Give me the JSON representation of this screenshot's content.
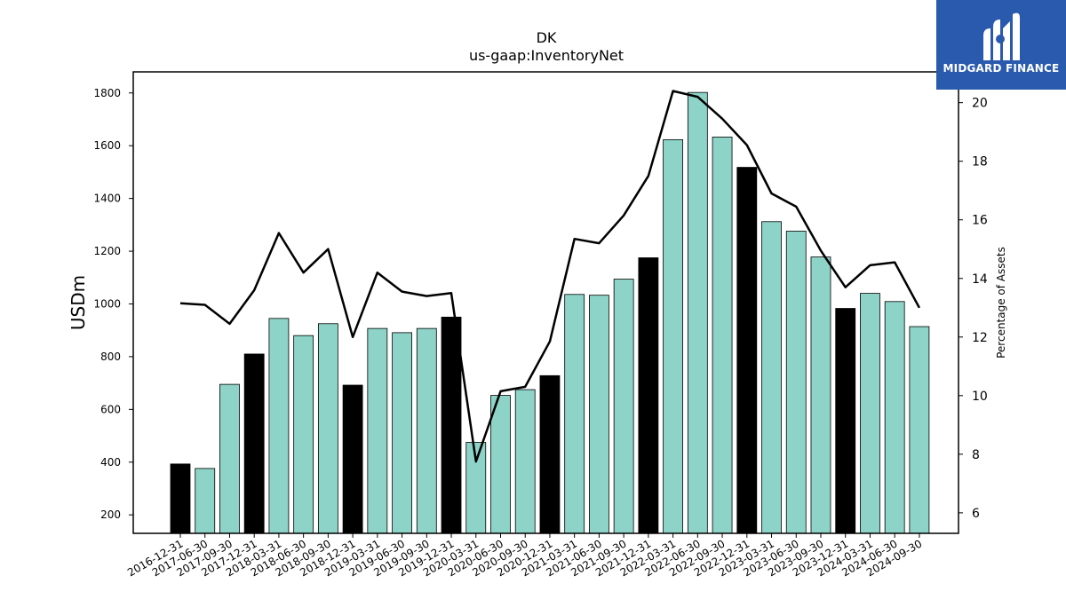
{
  "chart_data": {
    "type": "bar",
    "title": "DK",
    "subtitle": "us-gaap:InventoryNet",
    "ylabel": "USDm",
    "y2label": "Percentage of Assets",
    "ylim": [
      130,
      1880
    ],
    "y2lim": [
      5.3,
      21.05
    ],
    "yticks": [
      200,
      400,
      600,
      800,
      1000,
      1200,
      1400,
      1600,
      1800
    ],
    "y2ticks": [
      6,
      8,
      10,
      12,
      14,
      16,
      18,
      20
    ],
    "categories": [
      "2016-12-31",
      "2017-06-30",
      "2017-09-30",
      "2017-12-31",
      "2018-03-31",
      "2018-06-30",
      "2018-09-30",
      "2018-12-31",
      "2019-03-31",
      "2019-06-30",
      "2019-09-30",
      "2019-12-31",
      "2020-03-31",
      "2020-06-30",
      "2020-09-30",
      "2020-12-31",
      "2021-03-31",
      "2021-06-30",
      "2021-09-30",
      "2021-12-31",
      "2022-03-31",
      "2022-06-30",
      "2022-09-30",
      "2022-12-31",
      "2023-03-31",
      "2023-06-30",
      "2023-09-30",
      "2023-12-31",
      "2024-03-31",
      "2024-06-30",
      "2024-09-30"
    ],
    "series": [
      {
        "kind": "bar",
        "values": [
          393,
          376,
          695,
          810,
          945,
          880,
          925,
          692,
          907,
          891,
          907,
          950,
          475,
          653,
          675,
          728,
          1036,
          1033,
          1094,
          1175,
          1623,
          1802,
          1633,
          1518,
          1312,
          1276,
          1178,
          983,
          1040,
          1009,
          914
        ],
        "highlight": [
          true,
          false,
          false,
          true,
          false,
          false,
          false,
          true,
          false,
          false,
          false,
          true,
          false,
          false,
          false,
          true,
          false,
          false,
          false,
          true,
          false,
          false,
          false,
          true,
          false,
          false,
          false,
          true,
          false,
          false,
          false
        ],
        "color": "#8dd3c7",
        "highlight_color": "#000000"
      },
      {
        "kind": "line",
        "axis": "right",
        "values": [
          13.15,
          13.1,
          12.45,
          13.6,
          15.55,
          14.2,
          15.0,
          12.0,
          14.2,
          13.55,
          13.4,
          13.5,
          7.75,
          10.15,
          10.3,
          11.85,
          15.35,
          15.2,
          16.15,
          17.5,
          20.4,
          20.2,
          19.45,
          18.55,
          16.9,
          16.45,
          14.95,
          13.7,
          14.45,
          14.55,
          13.0
        ],
        "color": "#000000"
      }
    ]
  },
  "logo": {
    "text": "MIDGARD FINANCE"
  }
}
